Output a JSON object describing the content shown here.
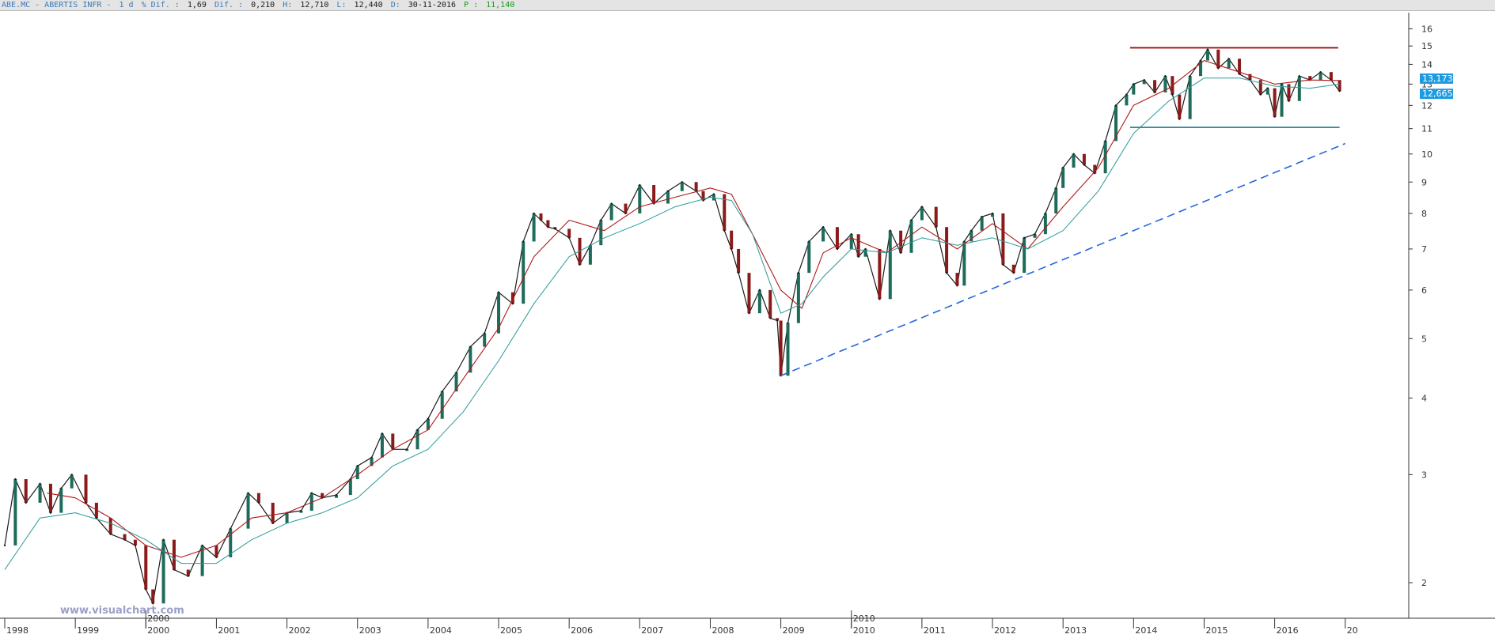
{
  "infobar": {
    "symbol": "ABE.MC - ABERTIS INFR -",
    "period": "1 d",
    "pct_label": "% Dif. :",
    "pct_value": "1,69",
    "dif_label": "Dif. :",
    "dif_value": "0,210",
    "h_label": "H:",
    "h_value": "12,710",
    "l_label": "L:",
    "l_value": "12,440",
    "d_label": "D:",
    "d_value": "30-11-2016",
    "p_label": "P :",
    "p_value": "11,140"
  },
  "watermark": "www.visualchart.com",
  "colors": {
    "price": "#1a1a1a",
    "up_body": "#1d6b5a",
    "down_body": "#8b1a1a",
    "sma_short": "#b01818",
    "sma_long": "#2a9a9a",
    "resistance": "#9a1010",
    "support": "#2a8a9a",
    "trendline": "#2266dd",
    "tag_bg": "#1e9be0"
  },
  "chart_data": {
    "type": "line",
    "scale": "log",
    "ylim": [
      1.75,
      17
    ],
    "xlim": [
      1998.0,
      2017.9
    ],
    "yticks": [
      2,
      3,
      4,
      5,
      6,
      7,
      8,
      9,
      10,
      11,
      12,
      13,
      14,
      15,
      16
    ],
    "x_year_labels": [
      "1998",
      "1999",
      "2000",
      "2001",
      "2002",
      "2003",
      "2004",
      "2005",
      "2006",
      "2007",
      "2008",
      "2009",
      "2010",
      "2011",
      "2012",
      "2013",
      "2014",
      "2015",
      "2016",
      "20"
    ],
    "x_year_positions": [
      1998,
      1999,
      2000,
      2001,
      2002,
      2003,
      2004,
      2005,
      2006,
      2007,
      2008,
      2009,
      2010,
      2011,
      2012,
      2013,
      2014,
      2015,
      2016,
      2017
    ],
    "x_marker_labels": [
      {
        "label": "2000",
        "x": 2000.0
      },
      {
        "label": "2010",
        "x": 2010.0
      }
    ],
    "price_tags": [
      "13,173",
      "12,665"
    ],
    "series": [
      {
        "role": "price",
        "x": [
          1998.0,
          1998.15,
          1998.3,
          1998.5,
          1998.65,
          1998.8,
          1998.95,
          1999.15,
          1999.3,
          1999.5,
          1999.7,
          1999.85,
          2000.0,
          2000.1,
          2000.25,
          2000.4,
          2000.6,
          2000.8,
          2001.0,
          2001.2,
          2001.45,
          2001.6,
          2001.8,
          2002.0,
          2002.2,
          2002.35,
          2002.5,
          2002.7,
          2002.9,
          2003.0,
          2003.2,
          2003.35,
          2003.5,
          2003.7,
          2003.85,
          2004.0,
          2004.2,
          2004.4,
          2004.6,
          2004.8,
          2005.0,
          2005.2,
          2005.35,
          2005.5,
          2005.6,
          2005.7,
          2005.8,
          2006.0,
          2006.15,
          2006.3,
          2006.45,
          2006.6,
          2006.8,
          2007.0,
          2007.2,
          2007.4,
          2007.6,
          2007.8,
          2007.9,
          2008.05,
          2008.2,
          2008.3,
          2008.4,
          2008.55,
          2008.7,
          2008.85,
          2008.95,
          2009.0,
          2009.1,
          2009.25,
          2009.4,
          2009.6,
          2009.8,
          2010.0,
          2010.1,
          2010.2,
          2010.4,
          2010.55,
          2010.7,
          2010.85,
          2011.0,
          2011.2,
          2011.35,
          2011.5,
          2011.6,
          2011.7,
          2011.85,
          2012.0,
          2012.15,
          2012.3,
          2012.45,
          2012.6,
          2012.75,
          2012.9,
          2013.0,
          2013.15,
          2013.3,
          2013.45,
          2013.6,
          2013.75,
          2013.9,
          2014.0,
          2014.15,
          2014.3,
          2014.45,
          2014.55,
          2014.65,
          2014.8,
          2014.95,
          2015.05,
          2015.2,
          2015.35,
          2015.5,
          2015.65,
          2015.8,
          2015.9,
          2016.0,
          2016.1,
          2016.2,
          2016.35,
          2016.5,
          2016.65,
          2016.8,
          2016.92
        ],
        "y": [
          2.3,
          2.95,
          2.7,
          2.9,
          2.6,
          2.85,
          3.0,
          2.7,
          2.55,
          2.4,
          2.35,
          2.3,
          1.95,
          1.85,
          2.35,
          2.1,
          2.05,
          2.3,
          2.2,
          2.45,
          2.8,
          2.7,
          2.5,
          2.6,
          2.62,
          2.8,
          2.75,
          2.78,
          2.95,
          3.1,
          3.2,
          3.5,
          3.3,
          3.3,
          3.55,
          3.7,
          4.1,
          4.4,
          4.85,
          5.1,
          5.95,
          5.7,
          7.2,
          8.0,
          7.8,
          7.6,
          7.55,
          7.3,
          6.6,
          7.1,
          7.8,
          8.3,
          8.0,
          8.9,
          8.3,
          8.7,
          9.0,
          8.7,
          8.4,
          8.6,
          7.5,
          7.0,
          6.4,
          5.5,
          6.0,
          5.4,
          5.35,
          4.35,
          5.3,
          6.4,
          7.2,
          7.6,
          7.0,
          7.4,
          6.8,
          7.0,
          5.8,
          7.5,
          6.9,
          7.8,
          8.2,
          7.6,
          6.4,
          6.1,
          7.2,
          7.5,
          7.9,
          8.0,
          6.6,
          6.4,
          7.3,
          7.4,
          8.0,
          8.8,
          9.5,
          10.0,
          9.6,
          9.3,
          10.5,
          12.0,
          12.5,
          13.0,
          13.2,
          12.6,
          13.4,
          12.5,
          11.4,
          13.4,
          14.2,
          14.8,
          13.8,
          14.3,
          13.5,
          13.2,
          12.5,
          12.8,
          11.5,
          13.0,
          12.2,
          13.4,
          13.2,
          13.6,
          13.2,
          12.665
        ]
      },
      {
        "role": "sma_short",
        "x": [
          1998.6,
          1999.0,
          1999.5,
          2000.0,
          2000.5,
          2001.0,
          2001.5,
          2002.0,
          2002.5,
          2003.0,
          2003.5,
          2004.0,
          2004.5,
          2005.0,
          2005.5,
          2006.0,
          2006.5,
          2007.0,
          2007.5,
          2008.0,
          2008.3,
          2008.6,
          2009.0,
          2009.3,
          2009.6,
          2010.0,
          2010.5,
          2011.0,
          2011.5,
          2012.0,
          2012.5,
          2013.0,
          2013.5,
          2014.0,
          2014.5,
          2015.0,
          2015.5,
          2016.0,
          2016.5,
          2016.92
        ],
        "y": [
          2.8,
          2.75,
          2.55,
          2.3,
          2.2,
          2.3,
          2.55,
          2.6,
          2.75,
          3.0,
          3.3,
          3.55,
          4.3,
          5.2,
          6.8,
          7.8,
          7.5,
          8.2,
          8.5,
          8.8,
          8.6,
          7.4,
          6.0,
          5.6,
          6.9,
          7.3,
          6.9,
          7.6,
          7.0,
          7.7,
          7.0,
          8.2,
          9.5,
          12.0,
          12.8,
          14.2,
          13.6,
          13.0,
          13.2,
          13.173
        ]
      },
      {
        "role": "sma_long",
        "x": [
          1998.0,
          1998.5,
          1999.0,
          1999.5,
          2000.0,
          2000.5,
          2001.0,
          2001.5,
          2002.0,
          2002.5,
          2003.0,
          2003.5,
          2004.0,
          2004.5,
          2005.0,
          2005.5,
          2006.0,
          2006.5,
          2007.0,
          2007.5,
          2008.0,
          2008.3,
          2008.6,
          2009.0,
          2009.3,
          2009.6,
          2010.0,
          2010.5,
          2011.0,
          2011.5,
          2012.0,
          2012.5,
          2013.0,
          2013.5,
          2014.0,
          2014.5,
          2015.0,
          2015.5,
          2016.0,
          2016.5,
          2016.92
        ],
        "y": [
          2.1,
          2.55,
          2.6,
          2.5,
          2.35,
          2.15,
          2.15,
          2.35,
          2.5,
          2.6,
          2.75,
          3.1,
          3.3,
          3.8,
          4.6,
          5.7,
          6.8,
          7.3,
          7.7,
          8.2,
          8.5,
          8.4,
          7.4,
          5.5,
          5.7,
          6.3,
          7.0,
          6.9,
          7.3,
          7.1,
          7.3,
          7.0,
          7.5,
          8.7,
          10.8,
          12.2,
          13.3,
          13.3,
          12.9,
          12.8,
          13.0
        ]
      }
    ],
    "lines": [
      {
        "role": "resistance",
        "x": [
          2013.95,
          2016.9
        ],
        "y": [
          14.9,
          14.9
        ]
      },
      {
        "role": "support",
        "x": [
          2013.95,
          2016.92
        ],
        "y": [
          11.05,
          11.05
        ]
      },
      {
        "role": "trendline",
        "x": [
          2009.0,
          2017.0
        ],
        "y": [
          4.35,
          10.4
        ],
        "style": "dashed"
      }
    ]
  }
}
